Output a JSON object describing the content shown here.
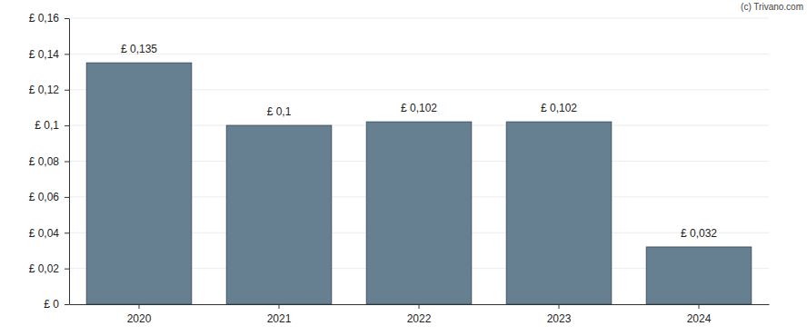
{
  "chart_data": {
    "type": "bar",
    "annotations": [
      "(c) Trivano.com"
    ],
    "categories": [
      "2020",
      "2021",
      "2022",
      "2023",
      "2024"
    ],
    "values": [
      0.135,
      0.1,
      0.102,
      0.102,
      0.032
    ],
    "value_labels": [
      "£ 0,135",
      "£ 0,1",
      "£ 0,102",
      "£ 0,102",
      "£ 0,032"
    ],
    "data_labels": true,
    "color": "#667f91",
    "ylim": [
      0,
      0.16
    ],
    "yticks": [
      {
        "value": 0,
        "label": "£ 0"
      },
      {
        "value": 0.02,
        "label": "£ 0,02"
      },
      {
        "value": 0.04,
        "label": "£ 0,04"
      },
      {
        "value": 0.06,
        "label": "£ 0,06"
      },
      {
        "value": 0.08,
        "label": "£ 0,08"
      },
      {
        "value": 0.1,
        "label": "£ 0,1"
      },
      {
        "value": 0.12,
        "label": "£ 0,12"
      },
      {
        "value": 0.14,
        "label": "£ 0,14"
      },
      {
        "value": 0.16,
        "label": "£ 0,16"
      }
    ],
    "grid": true
  }
}
